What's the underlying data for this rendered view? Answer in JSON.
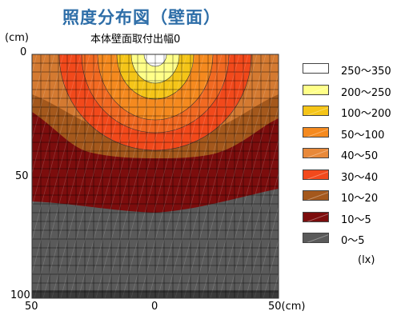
{
  "title": "照度分布図（壁面）",
  "subtitle": "本体壁面取付出幅0",
  "unit_label_top": "(cm)",
  "unit_label_lx": "(lx)",
  "chart_data": {
    "type": "heatmap",
    "title": "照度分布図（壁面）",
    "subtitle": "本体壁面取付出幅0",
    "x_ticks": [
      "50",
      "0",
      "50(cm)"
    ],
    "y_ticks": [
      "0",
      "50",
      "100"
    ],
    "x_range": [
      -50,
      50
    ],
    "y_range": [
      0,
      100
    ],
    "grid": true,
    "legend_position": "right",
    "levels": [
      {
        "label": "250〜350",
        "min": 250,
        "max": 350,
        "color": "#ffffff"
      },
      {
        "label": "200〜250",
        "min": 200,
        "max": 250,
        "color": "#ffff88"
      },
      {
        "label": "100〜200",
        "min": 100,
        "max": 200,
        "color": "#f5c518"
      },
      {
        "label": "50〜100",
        "min": 50,
        "max": 100,
        "color": "#f58a1f"
      },
      {
        "label": "40〜50",
        "min": 40,
        "max": 50,
        "color": "#e8893a"
      },
      {
        "label": "30〜40",
        "min": 30,
        "max": 40,
        "color": "#f2491b"
      },
      {
        "label": "10〜20",
        "min": 10,
        "max": 20,
        "color": "#a4581c"
      },
      {
        "label": "10〜5",
        "min": 5,
        "max": 10,
        "color": "#7c0d0d"
      },
      {
        "label": "0〜5",
        "min": 0,
        "max": 5,
        "color": "#5a5a5a"
      }
    ]
  }
}
